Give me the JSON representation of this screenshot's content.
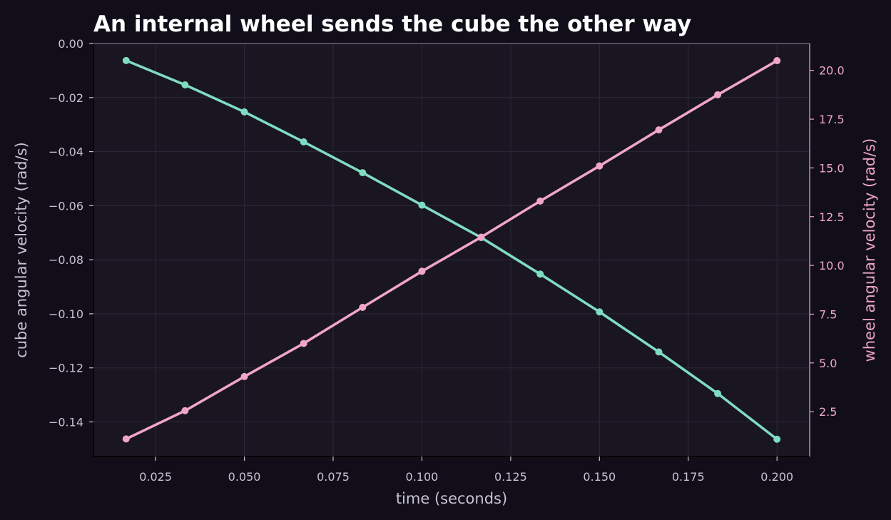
{
  "chart_data": {
    "type": "line",
    "title": "An internal wheel sends the cube the other way",
    "xlabel": "time (seconds)",
    "ylabel": "cube angular velocity (rad/s)",
    "ylabel_right": "wheel angular velocity (rad/s)",
    "xlim": [
      0.0075,
      0.2092
    ],
    "ylim": [
      -0.1528,
      0.0
    ],
    "ylim_right": [
      0.2,
      21.38
    ],
    "x_ticks": [
      0.025,
      0.05,
      0.075,
      0.1,
      0.125,
      0.15,
      0.175,
      0.2
    ],
    "x_tick_labels": [
      "0.025",
      "0.050",
      "0.075",
      "0.100",
      "0.125",
      "0.150",
      "0.175",
      "0.200"
    ],
    "y_ticks": [
      0.0,
      -0.02,
      -0.04,
      -0.06,
      -0.08,
      -0.1,
      -0.12,
      -0.14
    ],
    "y_tick_labels": [
      "0.00",
      "−0.02",
      "−0.04",
      "−0.06",
      "−0.08",
      "−0.10",
      "−0.12",
      "−0.14"
    ],
    "y_right_ticks": [
      2.5,
      5.0,
      7.5,
      10.0,
      12.5,
      15.0,
      17.5,
      20.0
    ],
    "y_right_tick_labels": [
      "2.5",
      "5.0",
      "7.5",
      "10.0",
      "12.5",
      "15.0",
      "17.5",
      "20.0"
    ],
    "grid": true,
    "x": [
      0.0167,
      0.0333,
      0.05,
      0.0667,
      0.0833,
      0.1,
      0.1167,
      0.1333,
      0.15,
      0.1667,
      0.1833,
      0.2
    ],
    "series": [
      {
        "axis": "left",
        "color": "#7fdcc0",
        "values": [
          -0.0063,
          -0.0153,
          -0.0253,
          -0.0364,
          -0.0478,
          -0.0598,
          -0.0718,
          -0.0853,
          -0.0993,
          -0.1141,
          -0.1295,
          -0.1464
        ]
      },
      {
        "axis": "right",
        "color": "#f0a6c8",
        "values": [
          1.1,
          2.55,
          4.3,
          6.0,
          7.85,
          9.7,
          11.45,
          13.3,
          15.1,
          16.95,
          18.75,
          20.5
        ]
      }
    ]
  },
  "colors": {
    "background": "#110e1a",
    "plot_background": "#191521",
    "grid": "#2c2838",
    "text": "#c7c2d1",
    "right_axis": "#f0a6c8",
    "title": "#ffffff"
  }
}
